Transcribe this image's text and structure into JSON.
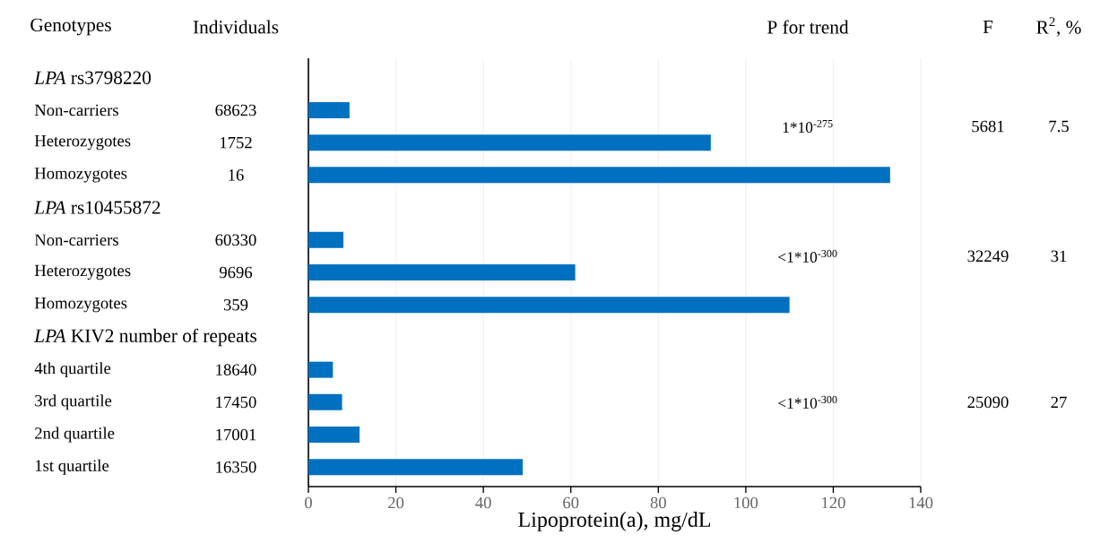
{
  "chart_data": {
    "type": "bar",
    "orientation": "horizontal",
    "categories": [
      "*LPA* rs3798220",
      "Non-carriers",
      "Heterozygotes",
      "Homozygotes",
      "*LPA* rs10455872",
      "Non-carriers",
      "Heterozygotes",
      "Homozygotes",
      "*LPA* KIV2 number of repeats",
      "4th quartile",
      "3rd quartile",
      "2nd quartile",
      "1st quartile"
    ],
    "values": [
      null,
      9.4,
      92,
      133,
      null,
      8,
      61,
      110,
      null,
      5.6,
      7.7,
      11.7,
      49
    ],
    "color": "#0070c0",
    "xlabel": "Lipoprotein(a), mg/dL",
    "xlim": [
      0,
      140
    ],
    "xticks": [
      0,
      20,
      40,
      60,
      80,
      100,
      120,
      140
    ],
    "grid": "x",
    "annotations": [
      "Genotypes",
      "Individuals",
      "P for trend",
      "F",
      "R$^{2}$, %",
      "68623",
      "1752",
      "16",
      "60330",
      "9696",
      "359",
      "18640",
      "17450",
      "17001",
      "16350",
      "1*10$^{-275}$",
      "<1*10$^{-300}$",
      "<1*10$^{-300}$",
      "5681",
      "32249",
      "25090",
      "7.5",
      "31",
      "27"
    ]
  }
}
